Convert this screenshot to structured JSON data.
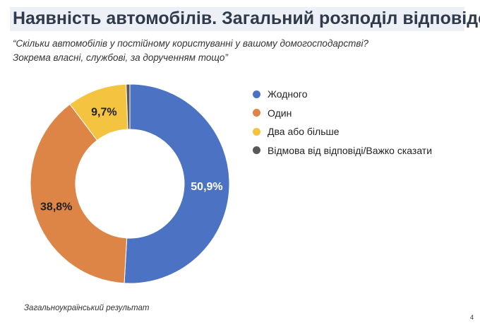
{
  "title": "Наявність автомобілів. Загальний розподіл відповідей",
  "question": {
    "line1": "“Скільки автомобілів у постійному користуванні  у вашому домогосподарстві?",
    "line2": "Зокрема власні, службові, за дорученням тощо”"
  },
  "chart_data": {
    "type": "pie",
    "donut": true,
    "categories": [
      "Жодного",
      "Один",
      "Два або більше",
      "Відмова від відповіді/Важко сказати"
    ],
    "values": [
      50.9,
      38.8,
      9.7,
      0.6
    ],
    "labels": [
      "50,9%",
      "38,8%",
      "9,7%",
      ""
    ],
    "colors": [
      "#4c72c4",
      "#dd8447",
      "#f4c340",
      "#595959"
    ],
    "legend_position": "right",
    "label_colors": [
      "#ffffff",
      "#222222",
      "#222222",
      "#222222"
    ]
  },
  "footer": "Загальноукраїнський результат",
  "page_number": "4"
}
